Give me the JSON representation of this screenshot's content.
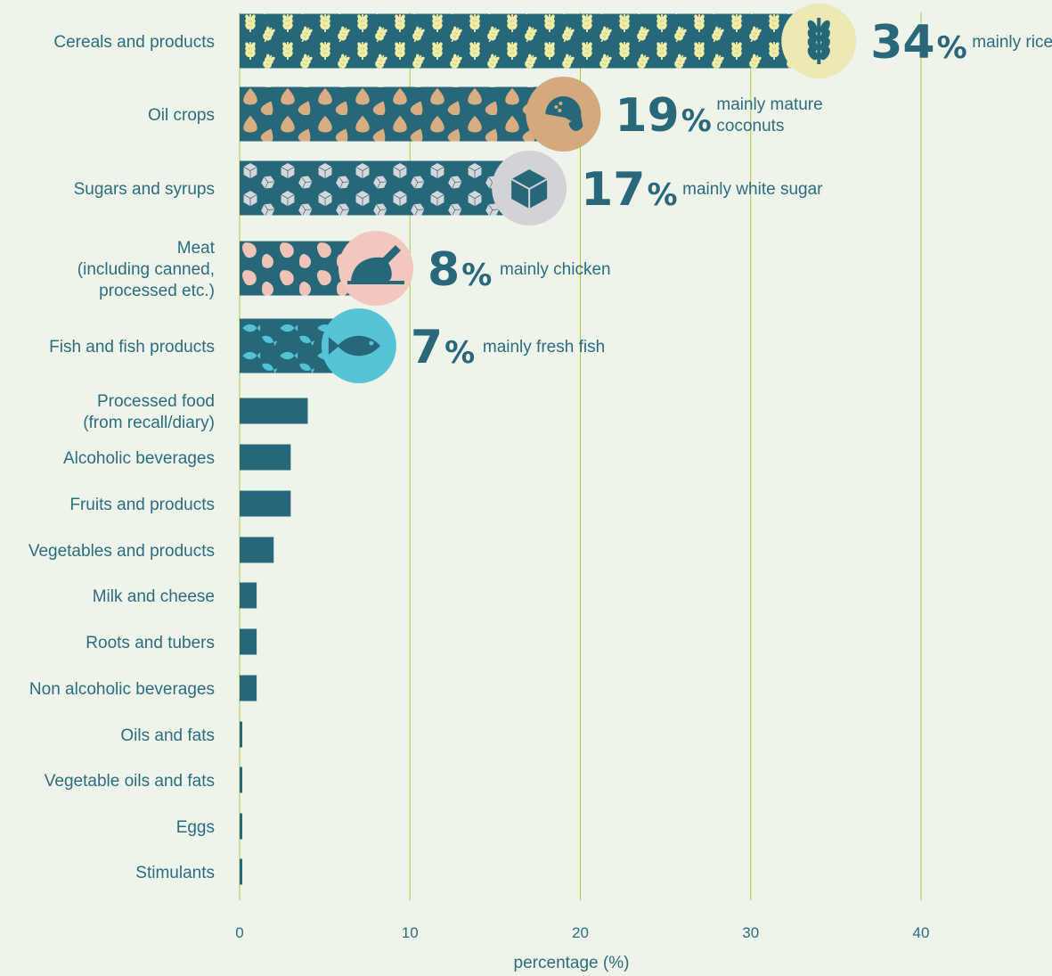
{
  "chart_data": {
    "type": "bar",
    "orientation": "horizontal",
    "xlabel": "percentage (%)",
    "xlim": [
      0,
      40
    ],
    "xticks": [
      0,
      10,
      20,
      30,
      40
    ],
    "grid": true,
    "categories": [
      [
        "Cereals and products"
      ],
      [
        "Oil crops"
      ],
      [
        "Sugars and syrups"
      ],
      [
        "Meat",
        "(including canned,",
        "processed etc.)"
      ],
      [
        "Fish and fish products"
      ],
      [
        "Processed food",
        "(from recall/diary)"
      ],
      [
        "Alcoholic beverages"
      ],
      [
        "Fruits and products"
      ],
      [
        "Vegetables and products"
      ],
      [
        "Milk and cheese"
      ],
      [
        "Roots and tubers"
      ],
      [
        "Non alcoholic beverages"
      ],
      [
        "Oils and fats"
      ],
      [
        "Vegetable oils and fats"
      ],
      [
        "Eggs"
      ],
      [
        "Stimulants"
      ]
    ],
    "values": [
      34,
      19,
      17,
      8,
      7,
      4,
      3,
      3,
      2,
      1,
      1,
      1,
      0.1,
      0.1,
      0.1,
      0.1
    ],
    "highlights": [
      {
        "index": 0,
        "percent": "34",
        "unit": "%",
        "note": [
          "mainly rice"
        ],
        "icon": "wheat-icon",
        "circle": "#ece9b5",
        "pattern": "#f1eda4"
      },
      {
        "index": 1,
        "percent": "19",
        "unit": "%",
        "note": [
          "mainly mature",
          "coconuts"
        ],
        "icon": "coconut-icon",
        "circle": "#d4aa7c",
        "pattern": "#d9ad82"
      },
      {
        "index": 2,
        "percent": "17",
        "unit": "%",
        "note": [
          "mainly white sugar"
        ],
        "icon": "sugar-cube-icon",
        "circle": "#d3d3d7",
        "pattern": "#d6d6da"
      },
      {
        "index": 3,
        "percent": "8",
        "unit": "%",
        "note": [
          "mainly chicken"
        ],
        "icon": "chicken-icon",
        "circle": "#f2c7bd",
        "pattern": "#f0c3b8"
      },
      {
        "index": 4,
        "percent": "7",
        "unit": "%",
        "note": [
          "mainly fresh fish"
        ],
        "icon": "fish-icon",
        "circle": "#55c4d6",
        "pattern": "#54c1d4"
      }
    ],
    "colors": {
      "bar": "#26687a",
      "grid": "#a8cc3c",
      "text": "#2c6d80",
      "background": "#eff4ea"
    }
  }
}
